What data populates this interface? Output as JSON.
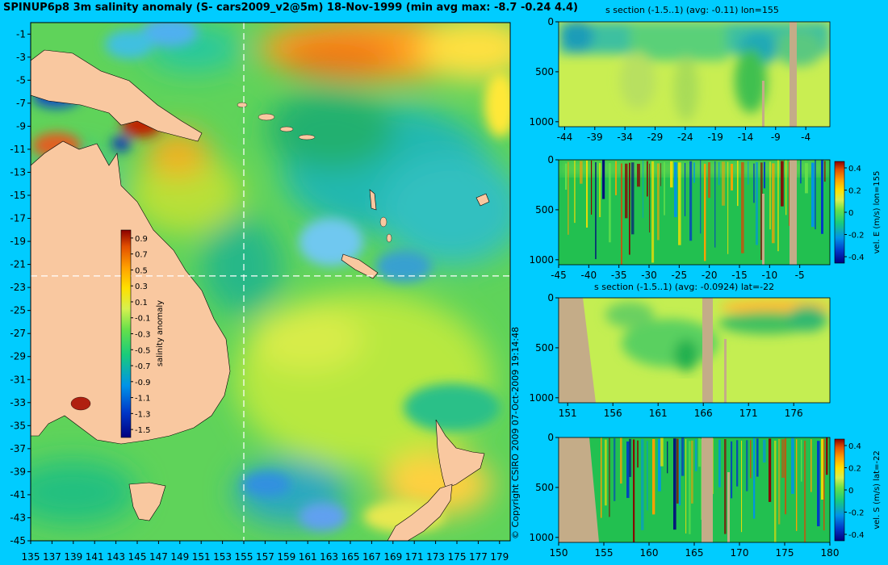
{
  "header": {
    "title": "SPINUP6p8 3m salinity anomaly (S- cars2009_v2@5m) 18-Nov-1999 (min avg max: -8.7 -0.24 4.4)",
    "copyright": "© Copyright CSIRO 2009  07-Oct-2009 19:14:48"
  },
  "colors": {
    "background": "#00ccff",
    "land": "#f9c8a0",
    "seafloor": "#c4ac88",
    "colormap": [
      "#00007f",
      "#0037c8",
      "#0093e8",
      "#19cc7a",
      "#66e04a",
      "#d6f050",
      "#ffe000",
      "#ffa000",
      "#e35000",
      "#8b0000"
    ]
  },
  "chart_data": [
    {
      "type": "heatmap",
      "name": "surface salinity anomaly map",
      "title": "SPINUP6p8 3m salinity anomaly (S- cars2009_v2@5m) 18-Nov-1999 (min avg max: -8.7 -0.24 4.4)",
      "x_ticks": [
        "135",
        "137",
        "139",
        "141",
        "143",
        "145",
        "147",
        "149",
        "151",
        "153",
        "155",
        "157",
        "159",
        "161",
        "163",
        "165",
        "167",
        "169",
        "171",
        "173",
        "175",
        "177",
        "179"
      ],
      "y_ticks": [
        "-1",
        "-3",
        "-5",
        "-7",
        "-9",
        "-11",
        "-13",
        "-15",
        "-17",
        "-19",
        "-21",
        "-23",
        "-25",
        "-27",
        "-29",
        "-31",
        "-33",
        "-35",
        "-37",
        "-39",
        "-41",
        "-43",
        "-45"
      ],
      "xlim": [
        135,
        180
      ],
      "ylim": [
        -45,
        0
      ],
      "section_lines": {
        "lon": 155,
        "lat": -22
      },
      "stats": {
        "min": -8.7,
        "avg": -0.24,
        "max": 4.4
      },
      "colorbar": {
        "label": "salinity anomaly",
        "ticks": [
          "0.9",
          "0.7",
          "0.5",
          "0.3",
          "0.1",
          "-0.1",
          "-0.3",
          "-0.5",
          "-0.7",
          "-0.9",
          "-1.1",
          "-1.3",
          "-1.5"
        ],
        "range": [
          -1.6,
          1.0
        ]
      }
    },
    {
      "type": "heatmap",
      "name": "salinity section lon 155",
      "title": "s section (-1.5..1) (avg: -0.11) lon=155",
      "x_ticks": [
        "-44",
        "-39",
        "-34",
        "-29",
        "-24",
        "-19",
        "-14",
        "-9",
        "-4"
      ],
      "y_ticks": [
        "0",
        "500",
        "1000"
      ],
      "xlim": [
        -45,
        0
      ],
      "ylim": [
        1050,
        0
      ]
    },
    {
      "type": "heatmap",
      "name": "eastward velocity section lon 155",
      "x_ticks": [
        "-45",
        "-40",
        "-35",
        "-30",
        "-25",
        "-20",
        "-15",
        "-10",
        "-5"
      ],
      "y_ticks": [
        "0",
        "500",
        "1000"
      ],
      "xlim": [
        -45,
        0
      ],
      "ylim": [
        1050,
        0
      ],
      "colorbar": {
        "label": "vel. E (m/s) lon=155",
        "ticks": [
          "0.4",
          "0.2",
          "0",
          "-0.2",
          "-0.4"
        ]
      }
    },
    {
      "type": "heatmap",
      "name": "salinity section lat -22",
      "title": "s section (-1.5..1) (avg: -0.0924) lat=-22",
      "x_ticks": [
        "151",
        "156",
        "161",
        "166",
        "171",
        "176"
      ],
      "y_ticks": [
        "0",
        "500",
        "1000"
      ],
      "xlim": [
        150,
        180
      ],
      "ylim": [
        1050,
        0
      ]
    },
    {
      "type": "heatmap",
      "name": "southward velocity section lat -22",
      "x_ticks": [
        "150",
        "155",
        "160",
        "165",
        "170",
        "175",
        "180"
      ],
      "y_ticks": [
        "0",
        "500",
        "1000"
      ],
      "xlim": [
        150,
        180
      ],
      "ylim": [
        1050,
        0
      ],
      "colorbar": {
        "label": "vel. S (m/s) lat=-22",
        "ticks": [
          "0.4",
          "0.2",
          "0",
          "-0.2",
          "-0.4"
        ]
      }
    }
  ]
}
